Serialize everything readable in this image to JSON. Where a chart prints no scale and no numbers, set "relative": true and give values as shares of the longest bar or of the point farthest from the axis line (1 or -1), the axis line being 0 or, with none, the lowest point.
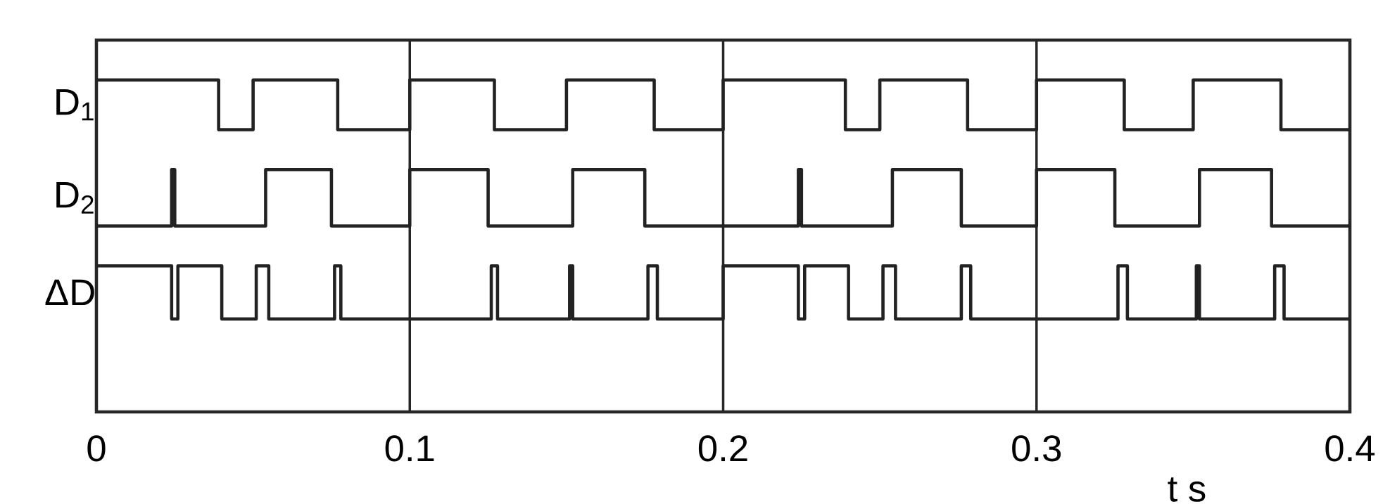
{
  "chart_data": {
    "type": "step",
    "relative": true,
    "xlabel": "t s",
    "xlim": [
      0,
      0.4
    ],
    "xticks": [
      0,
      0.1,
      0.2,
      0.3,
      0.4
    ],
    "grid": "x",
    "series": [
      {
        "name": "D$_{1}$",
        "color": "#222222",
        "x": [
          0,
          0.039,
          0.05,
          0.077,
          0.1,
          0.127,
          0.15,
          0.178,
          0.2,
          0.239,
          0.25,
          0.278,
          0.3,
          0.328,
          0.35,
          0.378,
          0.4
        ],
        "values": [
          1,
          0.85,
          1,
          0.85,
          1,
          0.85,
          1,
          0.85,
          1,
          0.85,
          1,
          0.85,
          1,
          0.85,
          1,
          0.85,
          0.85
        ]
      },
      {
        "name": "D$_{2}$",
        "color": "#222222",
        "x": [
          0,
          0.024,
          0.025,
          0.054,
          0.075,
          0.1,
          0.125,
          0.152,
          0.175,
          0.224,
          0.225,
          0.254,
          0.276,
          0.3,
          0.325,
          0.352,
          0.375,
          0.4
        ],
        "values": [
          0.56,
          0.73,
          0.56,
          0.73,
          0.56,
          0.73,
          0.56,
          0.73,
          0.56,
          0.73,
          0.56,
          0.73,
          0.56,
          0.73,
          0.56,
          0.73,
          0.56,
          0.56
        ]
      },
      {
        "name": "ΔD",
        "color": "#222222",
        "x": [
          0,
          0.024,
          0.026,
          0.04,
          0.051,
          0.055,
          0.076,
          0.078,
          0.126,
          0.128,
          0.151,
          0.152,
          0.176,
          0.179,
          0.2,
          0.224,
          0.226,
          0.24,
          0.251,
          0.255,
          0.276,
          0.279,
          0.326,
          0.329,
          0.351,
          0.352,
          0.376,
          0.379,
          0.4
        ],
        "values": [
          0.44,
          0.28,
          0.44,
          0.28,
          0.44,
          0.28,
          0.44,
          0.28,
          0.44,
          0.28,
          0.44,
          0.28,
          0.44,
          0.28,
          0.44,
          0.28,
          0.44,
          0.28,
          0.44,
          0.28,
          0.44,
          0.28,
          0.44,
          0.28,
          0.44,
          0.28,
          0.44,
          0.28,
          0.28
        ]
      }
    ]
  }
}
